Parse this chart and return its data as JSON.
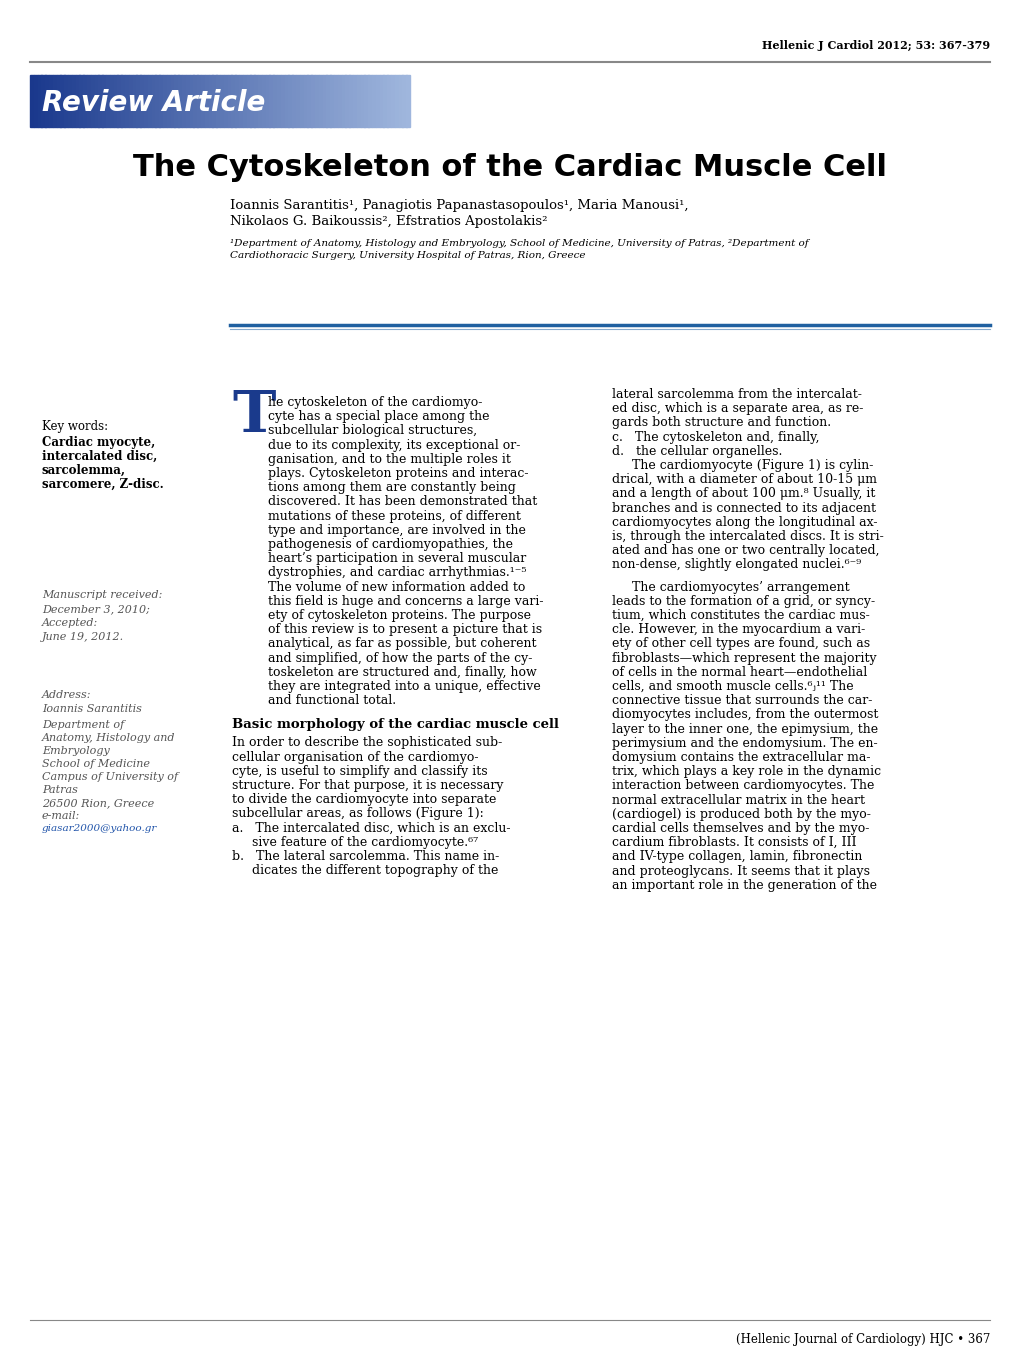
{
  "header_journal": "Hellenic J Cardiol 2012; 53: 367-379",
  "review_article_text": "Review Article",
  "title": "The Cytoskeleton of the Cardiac Muscle Cell",
  "authors_line1": "Ioannis Sarantitis¹, Panagiotis Papanastasopoulos¹, Maria Manousi¹,",
  "authors_line2": "Nikolaos G. Baikoussis², Efstratios Apostolakis²",
  "affiliation_line1": "¹Department of Anatomy, Histology and Embryology, School of Medicine, University of Patras, ²Department of",
  "affiliation_line2": "Cardiothoracic Surgery, University Hospital of Patras, Rion, Greece",
  "keywords_header": "Key words:",
  "keywords_bold": "Cardiac myocyte,\nintercalated disc,\nsarcolemma,\nsarcomere, Z-disc.",
  "manuscript_received_label": "Manuscript received:",
  "date_received": "December 3, 2010;",
  "accepted_label": "Accepted:",
  "date_accepted": "June 19, 2012.",
  "address_label": "Address:",
  "address_name": "Ioannis Sarantitis",
  "dept_lines": [
    "Department of",
    "Anatomy, Histology and",
    "Embryology",
    "School of Medicine",
    "Campus of University of",
    "Patras",
    "26500 Rion, Greece",
    "e-mail:"
  ],
  "email": "giasar2000@yahoo.gr",
  "footer": "(Hellenic Journal of Cardiology) HJC • 367",
  "bg_color": "#ffffff",
  "header_line_color": "#888888",
  "blue_line_color": "#2060a0",
  "review_text_color": "#ffffff",
  "title_color": "#000000",
  "text_color": "#000000",
  "T_drop_cap_color": "#1a3a8c",
  "body_text1_lines": [
    "he cytoskeleton of the cardiomyo-",
    "cyte has a special place among the",
    "subcellular biological structures,",
    "due to its complexity, its exceptional or-",
    "ganisation, and to the multiple roles it",
    "plays. Cytoskeleton proteins and interac-",
    "tions among them are constantly being",
    "discovered. It has been demonstrated that",
    "mutations of these proteins, of different",
    "type and importance, are involved in the",
    "pathogenesis of cardiomyopathies, the",
    "heart’s participation in several muscular",
    "dystrophies, and cardiac arrhythmias.¹⁻⁵",
    "The volume of new information added to",
    "this field is huge and concerns a large vari-",
    "ety of cytoskeleton proteins. The purpose",
    "of this review is to present a picture that is",
    "analytical, as far as possible, but coherent",
    "and simplified, of how the parts of the cy-",
    "toskeleton are structured and, finally, how",
    "they are integrated into a unique, effective",
    "and functional total."
  ],
  "section_header": "Basic morphology of the cardiac muscle cell",
  "section_body_lines": [
    "In order to describe the sophisticated sub-",
    "cellular organisation of the cardiomyo-",
    "cyte, is useful to simplify and classify its",
    "structure. For that purpose, it is necessary",
    "to divide the cardiomyocyte into separate",
    "subcellular areas, as follows (Figure 1):",
    "a.   The intercalated disc, which is an exclu-",
    "     sive feature of the cardiomyocyte.⁶⁷",
    "b.   The lateral sarcolemma. This name in-",
    "     dicates the different topography of the"
  ],
  "col2_top_lines": [
    "lateral sarcolemma from the intercalat-",
    "ed disc, which is a separate area, as re-",
    "gards both structure and function.",
    "c.   The cytoskeleton and, finally,",
    "d.   the cellular organelles.",
    "     The cardiomyocyte (Figure 1) is cylin-",
    "drical, with a diameter of about 10-15 μm",
    "and a length of about 100 μm.⁸ Usually, it",
    "branches and is connected to its adjacent",
    "cardiomyocytes along the longitudinal ax-",
    "is, through the intercalated discs. It is stri-",
    "ated and has one or two centrally located,",
    "non-dense, slightly elongated nuclei.⁶⁻⁹"
  ],
  "col2_mid_lines": [
    "     The cardiomyocytes’ arrangement",
    "leads to the formation of a grid, or syncy-",
    "tium, which constitutes the cardiac mus-",
    "cle. However, in the myocardium a vari-",
    "ety of other cell types are found, such as",
    "fibroblasts—which represent the majority",
    "of cells in the normal heart—endothelial",
    "cells, and smooth muscle cells.⁶ⱼ¹¹ The",
    "connective tissue that surrounds the car-",
    "diomyocytes includes, from the outermost",
    "layer to the inner one, the epimysium, the",
    "perimysium and the endomysium. The en-",
    "domysium contains the extracellular ma-",
    "trix, which plays a key role in the dynamic",
    "interaction between cardiomyocytes. The",
    "normal extracellular matrix in the heart",
    "(cardiogel) is produced both by the myo-",
    "cardial cells themselves and by the myo-",
    "cardium fibroblasts. It consists of I, III",
    "and IV-type collagen, lamin, fibronectin",
    "and proteoglycans. It seems that it plays",
    "an important role in the generation of the"
  ]
}
